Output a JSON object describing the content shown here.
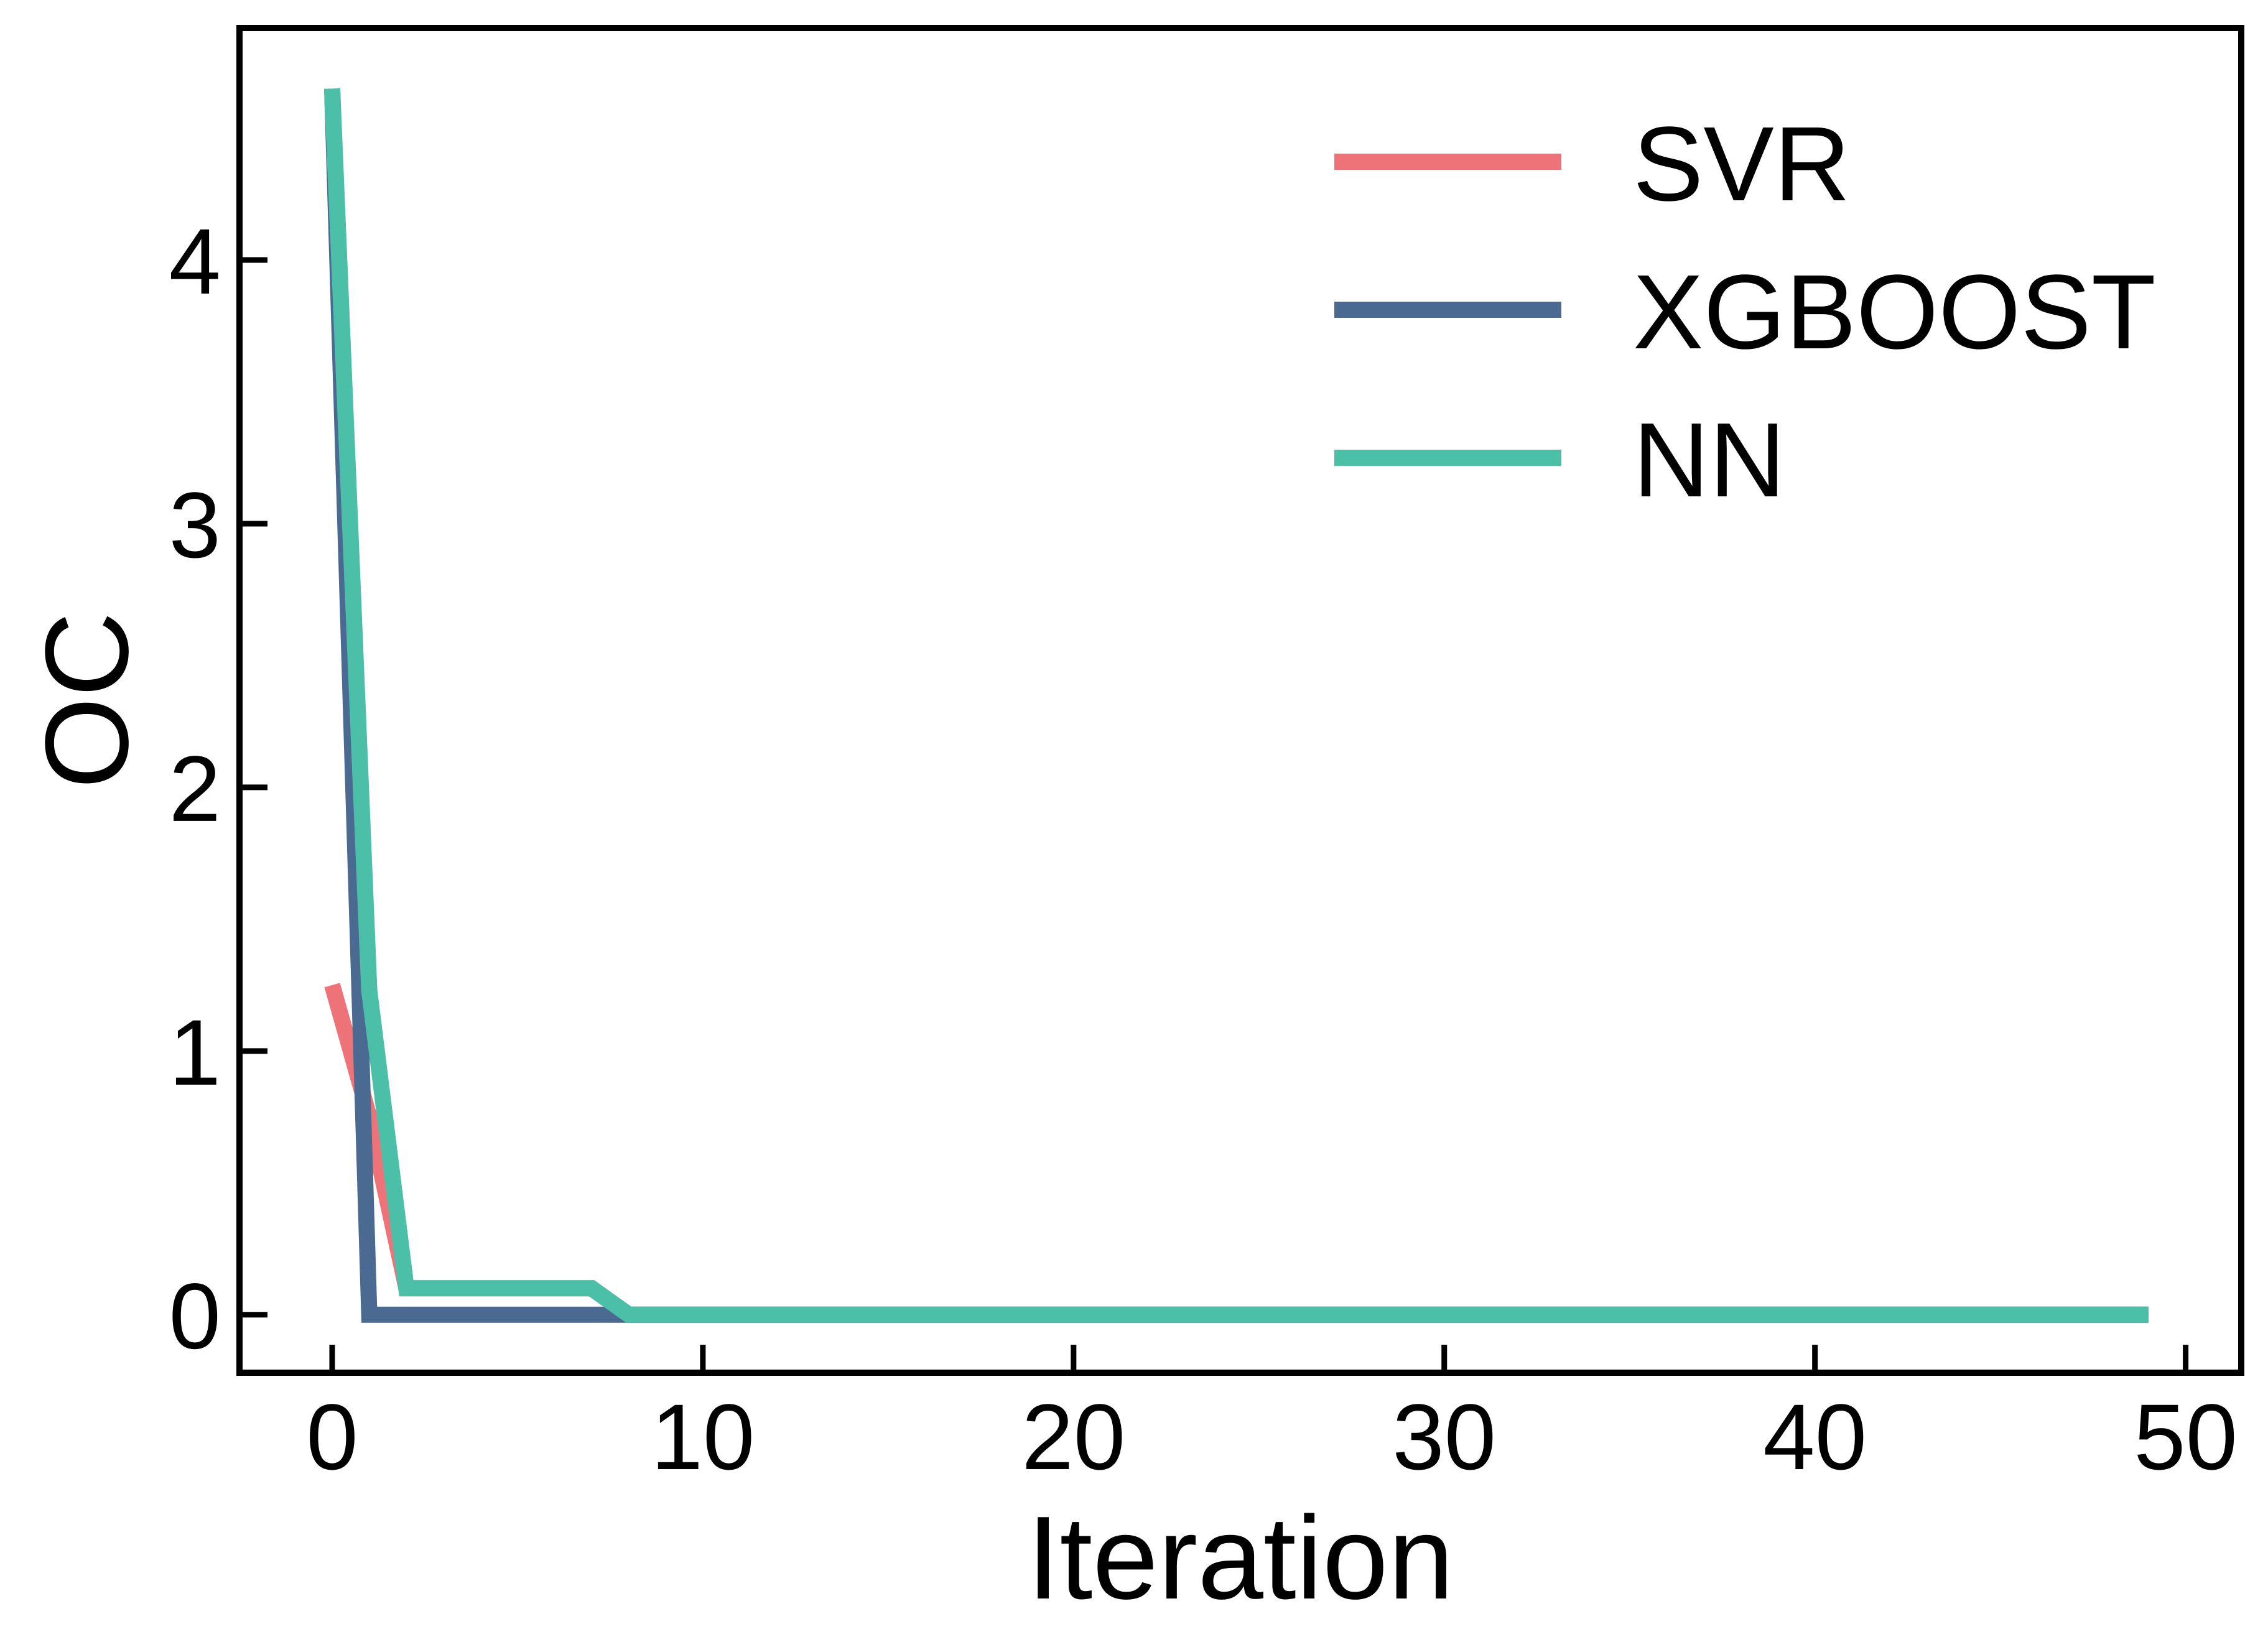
{
  "chart_data": {
    "type": "line",
    "title": "",
    "xlabel": "Iteration",
    "ylabel": "OC",
    "xlim": [
      -2.5,
      51.5
    ],
    "ylim": [
      -0.22,
      4.88
    ],
    "xticks": [
      0,
      10,
      20,
      30,
      40,
      50
    ],
    "yticks": [
      0,
      1,
      2,
      3,
      4
    ],
    "grid": false,
    "legend_position": "top-right",
    "series": [
      {
        "name": "SVR",
        "color": "#ee7379",
        "x": [
          0,
          1,
          2,
          3,
          4,
          5,
          6,
          7,
          8,
          9,
          10,
          20,
          30,
          40,
          49
        ],
        "y": [
          1.25,
          0.75,
          0.1,
          0.1,
          0.1,
          0.1,
          0.1,
          0.1,
          0.0,
          0.0,
          0.0,
          0.0,
          0.0,
          0.0,
          0.0
        ]
      },
      {
        "name": "XGBOOST",
        "color": "#4a6a92",
        "x": [
          0,
          1,
          2,
          3,
          4,
          5,
          6,
          7,
          8,
          9,
          10,
          20,
          30,
          40,
          49
        ],
        "y": [
          4.65,
          0.0,
          0.0,
          0.0,
          0.0,
          0.0,
          0.0,
          0.0,
          0.0,
          0.0,
          0.0,
          0.0,
          0.0,
          0.0,
          0.0
        ]
      },
      {
        "name": "NN",
        "color": "#4cbfa8",
        "x": [
          0,
          1,
          2,
          3,
          4,
          5,
          6,
          7,
          8,
          9,
          10,
          20,
          30,
          40,
          49
        ],
        "y": [
          4.65,
          1.23,
          0.1,
          0.1,
          0.1,
          0.1,
          0.1,
          0.1,
          0.0,
          0.0,
          0.0,
          0.0,
          0.0,
          0.0,
          0.0
        ]
      }
    ]
  }
}
